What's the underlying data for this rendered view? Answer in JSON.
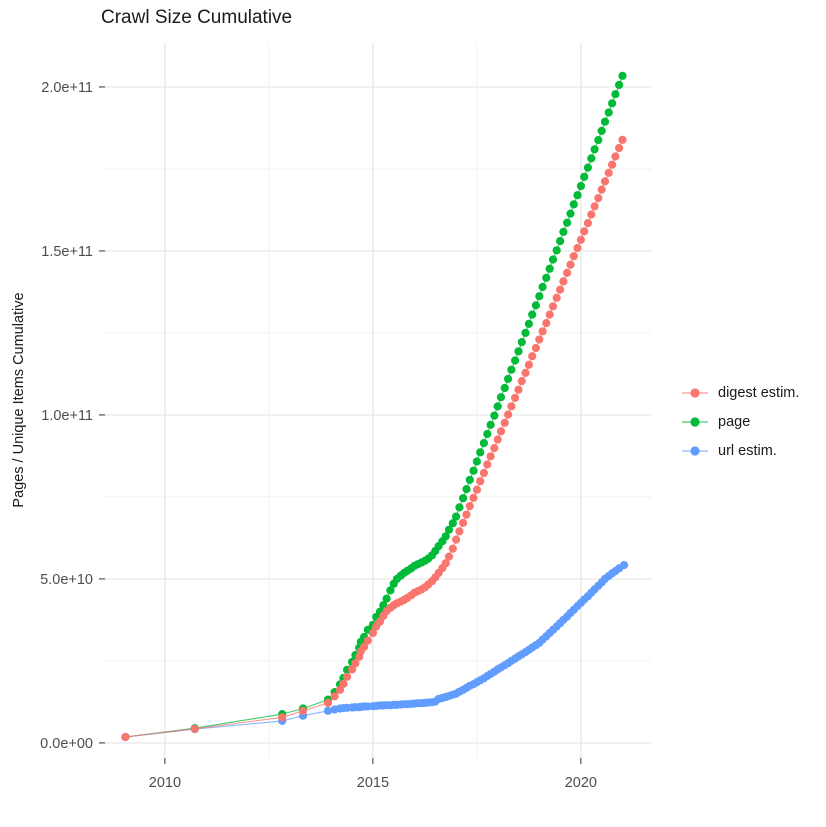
{
  "title": "Crawl Size Cumulative",
  "y_axis_title": "Pages / Unique Items Cumulative",
  "colors": {
    "digest": "#F8766D",
    "page": "#00BA38",
    "url": "#619CFF",
    "grid_major": "#E5E5E5",
    "grid_minor": "#F1F1F1",
    "tick_mark": "#333333",
    "tick_label": "#4D4D4D",
    "text": "#1A1A1A",
    "background": "#FFFFFF"
  },
  "legend": {
    "items": [
      {
        "label": "digest estim.",
        "series": "digest"
      },
      {
        "label": "page",
        "series": "page"
      },
      {
        "label": "url estim.",
        "series": "url"
      }
    ]
  },
  "chart_data": {
    "type": "scatter",
    "title": "Crawl Size Cumulative",
    "xlabel": "",
    "ylabel": "Pages / Unique Items Cumulative",
    "x_unit": "year (decimal)",
    "y_unit": "items, stored as value_e9 (multiply by 1e9)",
    "grid": true,
    "legend_position": "right",
    "xlim": [
      2008.56,
      2021.71
    ],
    "ylim_e9": [
      -4.6,
      213.4
    ],
    "x_ticks": [
      {
        "value": 2010,
        "label": "2010"
      },
      {
        "value": 2015,
        "label": "2015"
      },
      {
        "value": 2020,
        "label": "2020"
      }
    ],
    "x_minor_ticks": [
      2012.5,
      2017.5
    ],
    "y_ticks": [
      {
        "value_e9": 0,
        "label": "0.0e+00"
      },
      {
        "value_e9": 50,
        "label": "5.0e+10"
      },
      {
        "value_e9": 100,
        "label": "1.0e+11"
      },
      {
        "value_e9": 150,
        "label": "1.5e+11"
      },
      {
        "value_e9": 200,
        "label": "2.0e+11"
      }
    ],
    "y_minor_ticks_e9": [
      25,
      75,
      125,
      175
    ],
    "draw_order": [
      "page",
      "url estim.",
      "digest estim."
    ],
    "series": [
      {
        "name": "digest estim.",
        "color_key": "digest",
        "points": [
          [
            2009.05,
            1.8
          ],
          [
            2010.72,
            4.3
          ],
          [
            2012.82,
            7.8
          ],
          [
            2013.32,
            9.8
          ],
          [
            2013.92,
            12.2
          ],
          [
            2014.08,
            14.2
          ],
          [
            2014.21,
            16.2
          ],
          [
            2014.29,
            18.0
          ],
          [
            2014.38,
            20.2
          ],
          [
            2014.5,
            22.4
          ],
          [
            2014.58,
            24.3
          ],
          [
            2014.67,
            26.3
          ],
          [
            2014.71,
            27.9
          ],
          [
            2014.79,
            29.3
          ],
          [
            2014.88,
            31.2
          ],
          [
            2015.0,
            33.5
          ],
          [
            2015.08,
            35.5
          ],
          [
            2015.17,
            37.0
          ],
          [
            2015.25,
            38.7
          ],
          [
            2015.33,
            40.2
          ],
          [
            2015.42,
            41.2
          ],
          [
            2015.5,
            42.0
          ],
          [
            2015.58,
            42.6
          ],
          [
            2015.67,
            43.1
          ],
          [
            2015.75,
            43.6
          ],
          [
            2015.83,
            44.2
          ],
          [
            2015.92,
            45.0
          ],
          [
            2016.0,
            45.8
          ],
          [
            2016.08,
            46.3
          ],
          [
            2016.17,
            46.8
          ],
          [
            2016.25,
            47.4
          ],
          [
            2016.33,
            48.3
          ],
          [
            2016.42,
            49.3
          ],
          [
            2016.5,
            50.5
          ],
          [
            2016.58,
            51.8
          ],
          [
            2016.67,
            53.3
          ],
          [
            2016.75,
            54.8
          ],
          [
            2016.83,
            56.8
          ],
          [
            2016.92,
            59.2
          ],
          [
            2017.0,
            62.0
          ],
          [
            2017.08,
            64.5
          ],
          [
            2017.17,
            67.1
          ],
          [
            2017.25,
            69.6
          ],
          [
            2017.33,
            72.2
          ],
          [
            2017.42,
            74.7
          ],
          [
            2017.5,
            77.2
          ],
          [
            2017.58,
            79.8
          ],
          [
            2017.67,
            82.3
          ],
          [
            2017.75,
            84.9
          ],
          [
            2017.83,
            87.4
          ],
          [
            2017.92,
            89.9
          ],
          [
            2018.0,
            92.5
          ],
          [
            2018.08,
            95.0
          ],
          [
            2018.17,
            97.6
          ],
          [
            2018.25,
            100.1
          ],
          [
            2018.33,
            102.6
          ],
          [
            2018.42,
            105.2
          ],
          [
            2018.5,
            107.7
          ],
          [
            2018.58,
            110.3
          ],
          [
            2018.67,
            112.8
          ],
          [
            2018.75,
            115.3
          ],
          [
            2018.83,
            117.9
          ],
          [
            2018.92,
            120.4
          ],
          [
            2019.0,
            123.0
          ],
          [
            2019.08,
            125.5
          ],
          [
            2019.17,
            128.0
          ],
          [
            2019.25,
            130.6
          ],
          [
            2019.33,
            133.1
          ],
          [
            2019.42,
            135.7
          ],
          [
            2019.5,
            138.2
          ],
          [
            2019.58,
            140.7
          ],
          [
            2019.67,
            143.3
          ],
          [
            2019.75,
            145.8
          ],
          [
            2019.83,
            148.4
          ],
          [
            2019.92,
            150.9
          ],
          [
            2020.0,
            153.4
          ],
          [
            2020.08,
            156.0
          ],
          [
            2020.17,
            158.5
          ],
          [
            2020.25,
            161.1
          ],
          [
            2020.33,
            163.6
          ],
          [
            2020.42,
            166.1
          ],
          [
            2020.5,
            168.7
          ],
          [
            2020.58,
            171.2
          ],
          [
            2020.67,
            173.8
          ],
          [
            2020.75,
            176.3
          ],
          [
            2020.83,
            178.8
          ],
          [
            2020.92,
            181.4
          ],
          [
            2021.0,
            183.9
          ]
        ]
      },
      {
        "name": "page",
        "color_key": "page",
        "points": [
          [
            2009.05,
            1.8
          ],
          [
            2010.72,
            4.5
          ],
          [
            2012.82,
            8.8
          ],
          [
            2013.32,
            10.5
          ],
          [
            2013.92,
            13.2
          ],
          [
            2014.08,
            15.5
          ],
          [
            2014.21,
            17.8
          ],
          [
            2014.29,
            19.8
          ],
          [
            2014.38,
            22.3
          ],
          [
            2014.5,
            24.7
          ],
          [
            2014.58,
            26.8
          ],
          [
            2014.67,
            29.0
          ],
          [
            2014.71,
            30.8
          ],
          [
            2014.79,
            32.3
          ],
          [
            2014.88,
            34.5
          ],
          [
            2015.0,
            36.0
          ],
          [
            2015.08,
            38.4
          ],
          [
            2015.17,
            40.0
          ],
          [
            2015.25,
            42.0
          ],
          [
            2015.33,
            44.0
          ],
          [
            2015.42,
            46.5
          ],
          [
            2015.5,
            48.5
          ],
          [
            2015.58,
            50.0
          ],
          [
            2015.67,
            51.0
          ],
          [
            2015.75,
            51.8
          ],
          [
            2015.83,
            52.5
          ],
          [
            2015.92,
            53.2
          ],
          [
            2016.0,
            54.0
          ],
          [
            2016.08,
            54.5
          ],
          [
            2016.17,
            55.0
          ],
          [
            2016.25,
            55.5
          ],
          [
            2016.33,
            56.2
          ],
          [
            2016.42,
            57.2
          ],
          [
            2016.5,
            58.5
          ],
          [
            2016.58,
            60.0
          ],
          [
            2016.67,
            61.5
          ],
          [
            2016.75,
            63.0
          ],
          [
            2016.83,
            65.0
          ],
          [
            2016.92,
            67.0
          ],
          [
            2017.0,
            69.0
          ],
          [
            2017.08,
            71.8
          ],
          [
            2017.17,
            74.6
          ],
          [
            2017.25,
            77.4
          ],
          [
            2017.33,
            80.2
          ],
          [
            2017.42,
            83.0
          ],
          [
            2017.5,
            85.8
          ],
          [
            2017.58,
            88.6
          ],
          [
            2017.67,
            91.4
          ],
          [
            2017.75,
            94.2
          ],
          [
            2017.83,
            97.0
          ],
          [
            2017.92,
            99.8
          ],
          [
            2018.0,
            102.6
          ],
          [
            2018.08,
            105.4
          ],
          [
            2018.17,
            108.2
          ],
          [
            2018.25,
            111.0
          ],
          [
            2018.33,
            113.8
          ],
          [
            2018.42,
            116.6
          ],
          [
            2018.5,
            119.4
          ],
          [
            2018.58,
            122.2
          ],
          [
            2018.67,
            125.0
          ],
          [
            2018.75,
            127.8
          ],
          [
            2018.83,
            130.6
          ],
          [
            2018.92,
            133.4
          ],
          [
            2019.0,
            136.2
          ],
          [
            2019.08,
            139.0
          ],
          [
            2019.17,
            141.8
          ],
          [
            2019.25,
            144.6
          ],
          [
            2019.33,
            147.4
          ],
          [
            2019.42,
            150.2
          ],
          [
            2019.5,
            153.0
          ],
          [
            2019.58,
            155.8
          ],
          [
            2019.67,
            158.6
          ],
          [
            2019.75,
            161.4
          ],
          [
            2019.83,
            164.2
          ],
          [
            2019.92,
            167.0
          ],
          [
            2020.0,
            169.8
          ],
          [
            2020.08,
            172.6
          ],
          [
            2020.17,
            175.4
          ],
          [
            2020.25,
            178.2
          ],
          [
            2020.33,
            181.0
          ],
          [
            2020.42,
            183.8
          ],
          [
            2020.5,
            186.6
          ],
          [
            2020.58,
            189.4
          ],
          [
            2020.67,
            192.2
          ],
          [
            2020.75,
            195.0
          ],
          [
            2020.83,
            197.8
          ],
          [
            2020.92,
            200.6
          ],
          [
            2021.0,
            203.4
          ]
        ]
      },
      {
        "name": "url estim.",
        "color_key": "url",
        "points": [
          [
            2009.05,
            1.8
          ],
          [
            2010.72,
            4.2
          ],
          [
            2012.82,
            6.7
          ],
          [
            2013.32,
            8.3
          ],
          [
            2013.92,
            9.8
          ],
          [
            2014.08,
            10.2
          ],
          [
            2014.21,
            10.5
          ],
          [
            2014.29,
            10.6
          ],
          [
            2014.38,
            10.7
          ],
          [
            2014.5,
            10.8
          ],
          [
            2014.58,
            10.9
          ],
          [
            2014.67,
            10.9
          ],
          [
            2014.71,
            11.0
          ],
          [
            2014.79,
            11.1
          ],
          [
            2014.88,
            11.1
          ],
          [
            2015.0,
            11.2
          ],
          [
            2015.08,
            11.3
          ],
          [
            2015.17,
            11.4
          ],
          [
            2015.25,
            11.4
          ],
          [
            2015.33,
            11.5
          ],
          [
            2015.42,
            11.5
          ],
          [
            2015.5,
            11.6
          ],
          [
            2015.58,
            11.6
          ],
          [
            2015.67,
            11.7
          ],
          [
            2015.75,
            11.8
          ],
          [
            2015.83,
            11.8
          ],
          [
            2015.92,
            11.9
          ],
          [
            2016.0,
            12.0
          ],
          [
            2016.08,
            12.1
          ],
          [
            2016.17,
            12.1
          ],
          [
            2016.25,
            12.2
          ],
          [
            2016.33,
            12.3
          ],
          [
            2016.42,
            12.4
          ],
          [
            2016.5,
            12.6
          ],
          [
            2016.58,
            13.4
          ],
          [
            2016.67,
            13.7
          ],
          [
            2016.75,
            14.0
          ],
          [
            2016.83,
            14.3
          ],
          [
            2016.92,
            14.7
          ],
          [
            2017.0,
            15.0
          ],
          [
            2017.08,
            15.6
          ],
          [
            2017.17,
            16.2
          ],
          [
            2017.25,
            16.8
          ],
          [
            2017.33,
            17.4
          ],
          [
            2017.42,
            17.9
          ],
          [
            2017.5,
            18.5
          ],
          [
            2017.58,
            19.1
          ],
          [
            2017.67,
            19.7
          ],
          [
            2017.75,
            20.4
          ],
          [
            2017.83,
            21.0
          ],
          [
            2017.92,
            21.7
          ],
          [
            2018.0,
            22.4
          ],
          [
            2018.08,
            23.0
          ],
          [
            2018.17,
            23.7
          ],
          [
            2018.25,
            24.3
          ],
          [
            2018.33,
            25.0
          ],
          [
            2018.42,
            25.7
          ],
          [
            2018.5,
            26.4
          ],
          [
            2018.58,
            27.0
          ],
          [
            2018.67,
            27.7
          ],
          [
            2018.75,
            28.4
          ],
          [
            2018.83,
            29.1
          ],
          [
            2018.92,
            29.8
          ],
          [
            2019.0,
            30.5
          ],
          [
            2019.08,
            31.5
          ],
          [
            2019.17,
            32.5
          ],
          [
            2019.25,
            33.5
          ],
          [
            2019.33,
            34.5
          ],
          [
            2019.42,
            35.5
          ],
          [
            2019.5,
            36.5
          ],
          [
            2019.58,
            37.5
          ],
          [
            2019.67,
            38.5
          ],
          [
            2019.75,
            39.6
          ],
          [
            2019.83,
            40.6
          ],
          [
            2019.92,
            41.7
          ],
          [
            2020.0,
            42.7
          ],
          [
            2020.08,
            43.7
          ],
          [
            2020.17,
            44.7
          ],
          [
            2020.25,
            45.8
          ],
          [
            2020.33,
            46.8
          ],
          [
            2020.42,
            47.9
          ],
          [
            2020.5,
            48.9
          ],
          [
            2020.58,
            50.0
          ],
          [
            2020.67,
            50.9
          ],
          [
            2020.75,
            51.7
          ],
          [
            2020.83,
            52.4
          ],
          [
            2020.92,
            53.2
          ],
          [
            2021.04,
            54.2
          ]
        ]
      }
    ]
  }
}
